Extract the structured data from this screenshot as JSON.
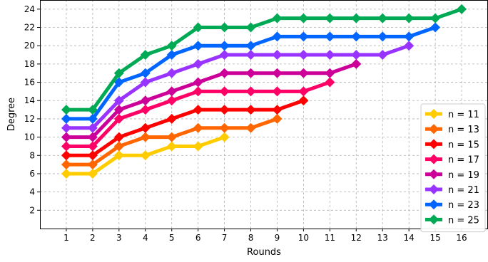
{
  "chart_data": {
    "type": "line",
    "title": "",
    "xlabel": "Rounds",
    "ylabel": "Degree",
    "xlim": [
      0,
      17
    ],
    "ylim": [
      0,
      25
    ],
    "xticks": [
      1,
      2,
      3,
      4,
      5,
      6,
      7,
      8,
      9,
      10,
      11,
      12,
      13,
      14,
      15,
      16
    ],
    "yticks": [
      2,
      4,
      6,
      8,
      10,
      12,
      14,
      16,
      18,
      20,
      22,
      24
    ],
    "grid": true,
    "grid_style": "dashed",
    "legend_position": "bottom-right",
    "marker": "diamond",
    "series": [
      {
        "name": "n = 11",
        "color": "#FFCC00",
        "x": [
          1,
          2,
          3,
          4,
          5,
          6,
          7
        ],
        "y": [
          6,
          6,
          8,
          8,
          9,
          9,
          10
        ]
      },
      {
        "name": "n = 13",
        "color": "#FF6600",
        "x": [
          1,
          2,
          3,
          4,
          5,
          6,
          7,
          8,
          9
        ],
        "y": [
          7,
          7,
          9,
          10,
          10,
          11,
          11,
          11,
          12
        ]
      },
      {
        "name": "n = 15",
        "color": "#FF0000",
        "x": [
          1,
          2,
          3,
          4,
          5,
          6,
          7,
          8,
          9,
          10
        ],
        "y": [
          8,
          8,
          10,
          11,
          12,
          13,
          13,
          13,
          13,
          14
        ]
      },
      {
        "name": "n = 17",
        "color": "#FF0066",
        "x": [
          1,
          2,
          3,
          4,
          5,
          6,
          7,
          8,
          9,
          10,
          11
        ],
        "y": [
          9,
          9,
          12,
          13,
          14,
          15,
          15,
          15,
          15,
          15,
          16
        ]
      },
      {
        "name": "n = 19",
        "color": "#CC0099",
        "x": [
          1,
          2,
          3,
          4,
          5,
          6,
          7,
          8,
          9,
          10,
          11,
          12
        ],
        "y": [
          10,
          10,
          13,
          14,
          15,
          16,
          17,
          17,
          17,
          17,
          17,
          18
        ]
      },
      {
        "name": "n = 21",
        "color": "#9933FF",
        "x": [
          1,
          2,
          3,
          4,
          5,
          6,
          7,
          8,
          9,
          10,
          11,
          12,
          13,
          14
        ],
        "y": [
          11,
          11,
          14,
          16,
          17,
          18,
          19,
          19,
          19,
          19,
          19,
          19,
          19,
          20
        ]
      },
      {
        "name": "n = 23",
        "color": "#0066FF",
        "x": [
          1,
          2,
          3,
          4,
          5,
          6,
          7,
          8,
          9,
          10,
          11,
          12,
          13,
          14,
          15
        ],
        "y": [
          12,
          12,
          16,
          17,
          19,
          20,
          20,
          20,
          21,
          21,
          21,
          21,
          21,
          21,
          22
        ]
      },
      {
        "name": "n = 25",
        "color": "#00AA55",
        "x": [
          1,
          2,
          3,
          4,
          5,
          6,
          7,
          8,
          9,
          10,
          11,
          12,
          13,
          14,
          15,
          16
        ],
        "y": [
          13,
          13,
          17,
          19,
          20,
          22,
          22,
          22,
          23,
          23,
          23,
          23,
          23,
          23,
          23,
          24
        ]
      }
    ]
  }
}
